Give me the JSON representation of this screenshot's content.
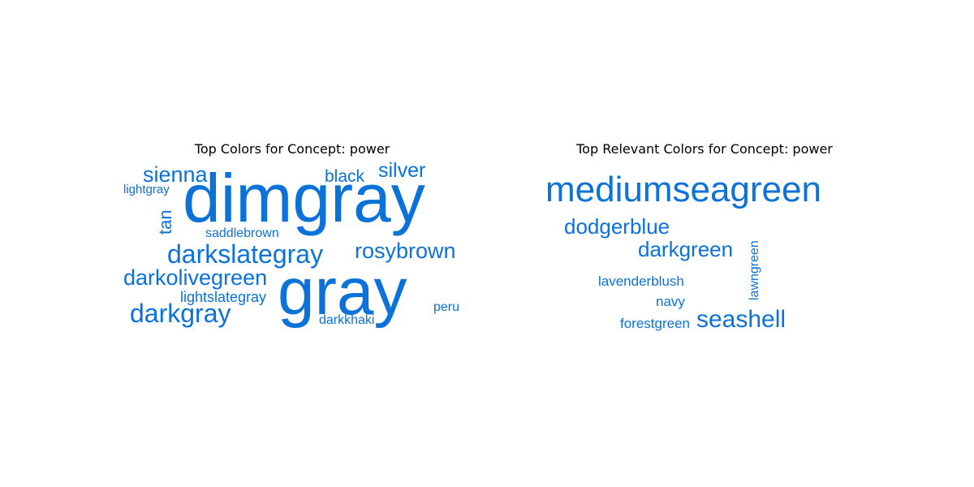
{
  "chart_data": [
    {
      "type": "wordcloud",
      "title": "Top Colors for Concept: power",
      "color": "#0a72d8",
      "words": [
        {
          "text": "dimgray",
          "weight": 1.0
        },
        {
          "text": "gray",
          "weight": 0.98
        },
        {
          "text": "darkslategray",
          "weight": 0.36
        },
        {
          "text": "darkgray",
          "weight": 0.34
        },
        {
          "text": "darkolivegreen",
          "weight": 0.31
        },
        {
          "text": "rosybrown",
          "weight": 0.31
        },
        {
          "text": "sienna",
          "weight": 0.27
        },
        {
          "text": "silver",
          "weight": 0.26
        },
        {
          "text": "tan",
          "weight": 0.24
        },
        {
          "text": "black",
          "weight": 0.23
        },
        {
          "text": "lightslategray",
          "weight": 0.19
        },
        {
          "text": "lightgray",
          "weight": 0.17
        },
        {
          "text": "saddlebrown",
          "weight": 0.17
        },
        {
          "text": "darkkhaki",
          "weight": 0.17
        },
        {
          "text": "peru",
          "weight": 0.16
        }
      ]
    },
    {
      "type": "wordcloud",
      "title": "Top Relevant Colors for Concept: power",
      "color": "#0a72d8",
      "words": [
        {
          "text": "mediumseagreen",
          "weight": 1.0
        },
        {
          "text": "darkgreen",
          "weight": 0.63
        },
        {
          "text": "dodgerblue",
          "weight": 0.63
        },
        {
          "text": "seashell",
          "weight": 0.68
        },
        {
          "text": "lavenderblush",
          "weight": 0.42
        },
        {
          "text": "lawngreen",
          "weight": 0.39
        },
        {
          "text": "forestgreen",
          "weight": 0.4
        },
        {
          "text": "navy",
          "weight": 0.4
        }
      ]
    }
  ]
}
